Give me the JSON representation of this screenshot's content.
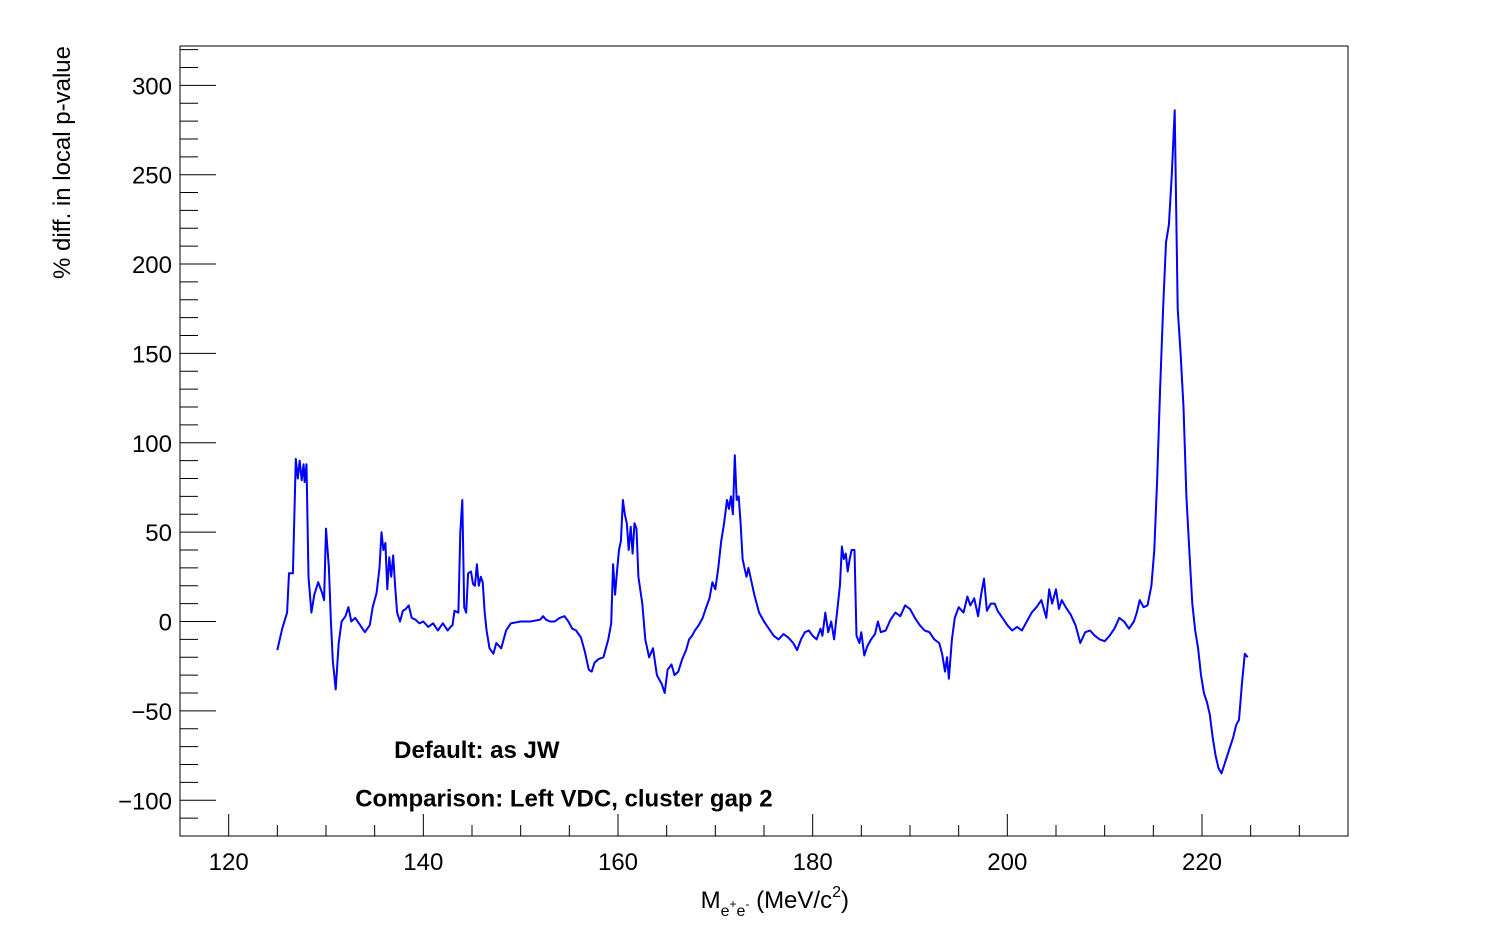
{
  "chart_data": {
    "type": "line",
    "title": "",
    "xlabel": {
      "main": "M",
      "sub_base": "e",
      "sub_sup1": "+",
      "sub_mid": "e",
      "sub_sup2": "-",
      "unit_pre": " (MeV/c",
      "unit_sup": "2",
      "unit_post": ")"
    },
    "ylabel": "% diff. in local p-value",
    "xlim": [
      115,
      235
    ],
    "ylim": [
      -120,
      322
    ],
    "x_ticks": [
      120,
      140,
      160,
      180,
      200,
      220
    ],
    "y_ticks": [
      -100,
      -50,
      0,
      50,
      100,
      150,
      200,
      250,
      300
    ],
    "x_tick_labels": [
      "120",
      "140",
      "160",
      "180",
      "200",
      "220"
    ],
    "y_tick_labels": [
      "−100",
      "−50",
      "0",
      "50",
      "100",
      "150",
      "200",
      "250",
      "300"
    ],
    "grid": false,
    "line_color": "#0000ff",
    "series": [
      {
        "points": [
          [
            125.0,
            -16
          ],
          [
            125.5,
            -4
          ],
          [
            126.0,
            5
          ],
          [
            126.2,
            27
          ],
          [
            126.6,
            27
          ],
          [
            126.9,
            91
          ],
          [
            127.1,
            80
          ],
          [
            127.3,
            90
          ],
          [
            127.5,
            79
          ],
          [
            127.7,
            88
          ],
          [
            127.8,
            78
          ],
          [
            128.0,
            88
          ],
          [
            128.2,
            25
          ],
          [
            128.5,
            5
          ],
          [
            128.8,
            15
          ],
          [
            129.2,
            22
          ],
          [
            129.6,
            16
          ],
          [
            129.8,
            12
          ],
          [
            130.0,
            52
          ],
          [
            130.3,
            30
          ],
          [
            130.5,
            0
          ],
          [
            130.7,
            -22
          ],
          [
            131.0,
            -38
          ],
          [
            131.3,
            -12
          ],
          [
            131.6,
            0
          ],
          [
            132.0,
            3
          ],
          [
            132.3,
            8
          ],
          [
            132.6,
            0
          ],
          [
            133.0,
            2
          ],
          [
            133.5,
            -2
          ],
          [
            134.0,
            -6
          ],
          [
            134.5,
            -2
          ],
          [
            134.8,
            8
          ],
          [
            135.2,
            16
          ],
          [
            135.5,
            30
          ],
          [
            135.7,
            50
          ],
          [
            135.9,
            40
          ],
          [
            136.1,
            44
          ],
          [
            136.3,
            18
          ],
          [
            136.5,
            36
          ],
          [
            136.7,
            25
          ],
          [
            136.9,
            37
          ],
          [
            137.1,
            20
          ],
          [
            137.3,
            5
          ],
          [
            137.6,
            0
          ],
          [
            137.9,
            6
          ],
          [
            138.2,
            7
          ],
          [
            138.5,
            9
          ],
          [
            138.8,
            2
          ],
          [
            139.2,
            1
          ],
          [
            139.6,
            -1
          ],
          [
            140.0,
            0
          ],
          [
            140.5,
            -3
          ],
          [
            141.0,
            -1
          ],
          [
            141.5,
            -5
          ],
          [
            142.0,
            -1
          ],
          [
            142.5,
            -5
          ],
          [
            142.8,
            -3
          ],
          [
            143.0,
            -2
          ],
          [
            143.2,
            6
          ],
          [
            143.6,
            5
          ],
          [
            143.8,
            50
          ],
          [
            144.0,
            68
          ],
          [
            144.2,
            8
          ],
          [
            144.4,
            5
          ],
          [
            144.6,
            27
          ],
          [
            144.9,
            28
          ],
          [
            145.1,
            21
          ],
          [
            145.3,
            20
          ],
          [
            145.5,
            32
          ],
          [
            145.7,
            20
          ],
          [
            145.9,
            25
          ],
          [
            146.1,
            22
          ],
          [
            146.3,
            5
          ],
          [
            146.5,
            -5
          ],
          [
            146.8,
            -15
          ],
          [
            147.2,
            -18
          ],
          [
            147.5,
            -12
          ],
          [
            148.0,
            -15
          ],
          [
            148.5,
            -5
          ],
          [
            149.0,
            -1
          ],
          [
            150.0,
            0
          ],
          [
            151.0,
            0
          ],
          [
            152.0,
            1
          ],
          [
            152.3,
            3
          ],
          [
            152.6,
            1
          ],
          [
            153.0,
            0
          ],
          [
            153.5,
            0
          ],
          [
            154.0,
            2
          ],
          [
            154.5,
            3
          ],
          [
            154.9,
            0
          ],
          [
            155.3,
            -4
          ],
          [
            155.7,
            -5
          ],
          [
            156.2,
            -9
          ],
          [
            156.6,
            -17
          ],
          [
            157.0,
            -27
          ],
          [
            157.3,
            -28
          ],
          [
            157.6,
            -23
          ],
          [
            158.0,
            -21
          ],
          [
            158.5,
            -20
          ],
          [
            159.0,
            -10
          ],
          [
            159.3,
            -1
          ],
          [
            159.5,
            32
          ],
          [
            159.7,
            15
          ],
          [
            159.9,
            28
          ],
          [
            160.1,
            40
          ],
          [
            160.3,
            45
          ],
          [
            160.5,
            68
          ],
          [
            160.7,
            60
          ],
          [
            160.9,
            55
          ],
          [
            161.1,
            40
          ],
          [
            161.3,
            53
          ],
          [
            161.5,
            38
          ],
          [
            161.7,
            55
          ],
          [
            161.9,
            52
          ],
          [
            162.1,
            25
          ],
          [
            162.5,
            10
          ],
          [
            162.8,
            -10
          ],
          [
            163.2,
            -20
          ],
          [
            163.6,
            -15
          ],
          [
            164.0,
            -30
          ],
          [
            164.5,
            -35
          ],
          [
            164.8,
            -40
          ],
          [
            165.1,
            -27
          ],
          [
            165.5,
            -24
          ],
          [
            165.8,
            -30
          ],
          [
            166.2,
            -28
          ],
          [
            166.6,
            -21
          ],
          [
            167.0,
            -16
          ],
          [
            167.3,
            -10
          ],
          [
            167.6,
            -8
          ],
          [
            167.9,
            -5
          ],
          [
            168.3,
            -2
          ],
          [
            168.7,
            2
          ],
          [
            169.0,
            7
          ],
          [
            169.4,
            13
          ],
          [
            169.7,
            22
          ],
          [
            170.0,
            18
          ],
          [
            170.3,
            30
          ],
          [
            170.6,
            45
          ],
          [
            170.9,
            55
          ],
          [
            171.2,
            68
          ],
          [
            171.4,
            63
          ],
          [
            171.6,
            70
          ],
          [
            171.8,
            60
          ],
          [
            172.0,
            93
          ],
          [
            172.2,
            68
          ],
          [
            172.4,
            70
          ],
          [
            172.6,
            55
          ],
          [
            172.8,
            35
          ],
          [
            173.0,
            30
          ],
          [
            173.2,
            25
          ],
          [
            173.4,
            30
          ],
          [
            173.6,
            25
          ],
          [
            174.0,
            15
          ],
          [
            174.5,
            5
          ],
          [
            175.0,
            0
          ],
          [
            175.5,
            -4
          ],
          [
            176.0,
            -8
          ],
          [
            176.5,
            -10
          ],
          [
            177.0,
            -7
          ],
          [
            177.5,
            -9
          ],
          [
            178.0,
            -12
          ],
          [
            178.4,
            -16
          ],
          [
            178.8,
            -10
          ],
          [
            179.2,
            -6
          ],
          [
            179.6,
            -5
          ],
          [
            180.0,
            -8
          ],
          [
            180.4,
            -10
          ],
          [
            180.8,
            -4
          ],
          [
            181.0,
            -8
          ],
          [
            181.3,
            5
          ],
          [
            181.6,
            -6
          ],
          [
            181.9,
            0
          ],
          [
            182.2,
            -10
          ],
          [
            182.5,
            5
          ],
          [
            182.8,
            20
          ],
          [
            183.0,
            42
          ],
          [
            183.2,
            35
          ],
          [
            183.4,
            38
          ],
          [
            183.6,
            28
          ],
          [
            183.8,
            35
          ],
          [
            184.0,
            40
          ],
          [
            184.3,
            40
          ],
          [
            184.5,
            -8
          ],
          [
            184.8,
            -12
          ],
          [
            185.0,
            -6
          ],
          [
            185.3,
            -19
          ],
          [
            185.6,
            -14
          ],
          [
            186.0,
            -10
          ],
          [
            186.4,
            -7
          ],
          [
            186.7,
            0
          ],
          [
            187.0,
            -6
          ],
          [
            187.5,
            -5
          ],
          [
            188.0,
            1
          ],
          [
            188.5,
            5
          ],
          [
            189.0,
            3
          ],
          [
            189.5,
            9
          ],
          [
            190.0,
            7
          ],
          [
            190.5,
            2
          ],
          [
            191.0,
            -2
          ],
          [
            191.5,
            -5
          ],
          [
            192.0,
            -6
          ],
          [
            192.5,
            -10
          ],
          [
            193.0,
            -12
          ],
          [
            193.3,
            -18
          ],
          [
            193.6,
            -28
          ],
          [
            193.8,
            -20
          ],
          [
            194.0,
            -32
          ],
          [
            194.3,
            -10
          ],
          [
            194.6,
            2
          ],
          [
            195.0,
            8
          ],
          [
            195.5,
            5
          ],
          [
            195.9,
            14
          ],
          [
            196.2,
            9
          ],
          [
            196.6,
            13
          ],
          [
            197.0,
            3
          ],
          [
            197.3,
            15
          ],
          [
            197.6,
            24
          ],
          [
            197.9,
            6
          ],
          [
            198.3,
            10
          ],
          [
            198.7,
            10
          ],
          [
            199.0,
            6
          ],
          [
            199.5,
            2
          ],
          [
            200.0,
            -2
          ],
          [
            200.5,
            -5
          ],
          [
            201.0,
            -3
          ],
          [
            201.5,
            -5
          ],
          [
            202.0,
            0
          ],
          [
            202.5,
            5
          ],
          [
            203.0,
            8
          ],
          [
            203.5,
            12
          ],
          [
            204.0,
            2
          ],
          [
            204.3,
            18
          ],
          [
            204.6,
            10
          ],
          [
            205.0,
            18
          ],
          [
            205.3,
            7
          ],
          [
            205.6,
            12
          ],
          [
            206.0,
            8
          ],
          [
            206.5,
            4
          ],
          [
            207.0,
            -2
          ],
          [
            207.5,
            -12
          ],
          [
            208.0,
            -6
          ],
          [
            208.5,
            -5
          ],
          [
            209.0,
            -8
          ],
          [
            209.5,
            -10
          ],
          [
            210.0,
            -11
          ],
          [
            210.5,
            -8
          ],
          [
            211.0,
            -4
          ],
          [
            211.5,
            2
          ],
          [
            212.0,
            0
          ],
          [
            212.5,
            -4
          ],
          [
            213.0,
            0
          ],
          [
            213.3,
            5
          ],
          [
            213.6,
            12
          ],
          [
            214.0,
            8
          ],
          [
            214.4,
            9
          ],
          [
            214.8,
            20
          ],
          [
            215.1,
            40
          ],
          [
            215.4,
            80
          ],
          [
            215.7,
            130
          ],
          [
            216.0,
            175
          ],
          [
            216.3,
            212
          ],
          [
            216.6,
            222
          ],
          [
            216.9,
            250
          ],
          [
            217.2,
            286
          ],
          [
            217.5,
            175
          ],
          [
            217.8,
            150
          ],
          [
            218.1,
            120
          ],
          [
            218.4,
            70
          ],
          [
            218.7,
            40
          ],
          [
            219.0,
            10
          ],
          [
            219.3,
            -5
          ],
          [
            219.6,
            -15
          ],
          [
            219.9,
            -30
          ],
          [
            220.2,
            -40
          ],
          [
            220.5,
            -45
          ],
          [
            220.8,
            -52
          ],
          [
            221.1,
            -65
          ],
          [
            221.4,
            -75
          ],
          [
            221.7,
            -82
          ],
          [
            222.0,
            -85
          ],
          [
            222.3,
            -80
          ],
          [
            222.6,
            -75
          ],
          [
            222.9,
            -70
          ],
          [
            223.2,
            -65
          ],
          [
            223.5,
            -58
          ],
          [
            223.8,
            -55
          ],
          [
            224.1,
            -35
          ],
          [
            224.4,
            -18
          ],
          [
            224.7,
            -20
          ]
        ]
      }
    ],
    "annotations": [
      {
        "text": "Default: as JW",
        "x": 137.0,
        "y": -72
      },
      {
        "text": "Comparison: Left VDC, cluster gap 2",
        "x": 133.0,
        "y": -99
      }
    ]
  }
}
